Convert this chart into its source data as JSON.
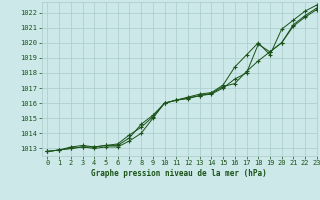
{
  "title": "Graphe pression niveau de la mer (hPa)",
  "xlim": [
    -0.5,
    23
  ],
  "ylim": [
    1012.5,
    1022.7
  ],
  "yticks": [
    1013,
    1014,
    1015,
    1016,
    1017,
    1018,
    1019,
    1020,
    1021,
    1022
  ],
  "xticks": [
    0,
    1,
    2,
    3,
    4,
    5,
    6,
    7,
    8,
    9,
    10,
    11,
    12,
    13,
    14,
    15,
    16,
    17,
    18,
    19,
    20,
    21,
    22,
    23
  ],
  "bg_color": "#cce8e8",
  "grid_color": "#aacccc",
  "line_color": "#1a5218",
  "series1_y": [
    1012.8,
    1012.9,
    1013.1,
    1013.2,
    1013.1,
    1013.2,
    1013.3,
    1013.9,
    1014.4,
    1015.1,
    1016.0,
    1016.2,
    1016.3,
    1016.5,
    1016.6,
    1017.0,
    1017.6,
    1018.0,
    1019.9,
    1019.4,
    1020.0,
    1021.1,
    1021.7,
    1022.2
  ],
  "series2_y": [
    1012.8,
    1012.9,
    1013.0,
    1013.1,
    1013.0,
    1013.1,
    1013.1,
    1013.5,
    1014.0,
    1015.0,
    1016.0,
    1016.2,
    1016.35,
    1016.5,
    1016.65,
    1017.1,
    1017.3,
    1018.1,
    1018.8,
    1019.4,
    1020.0,
    1021.2,
    1021.8,
    1022.3
  ],
  "series3_y": [
    1012.8,
    1012.9,
    1013.0,
    1013.1,
    1013.1,
    1013.2,
    1013.2,
    1013.7,
    1014.6,
    1015.2,
    1016.0,
    1016.2,
    1016.4,
    1016.6,
    1016.7,
    1017.2,
    1018.4,
    1019.2,
    1020.0,
    1019.2,
    1020.9,
    1021.5,
    1022.1,
    1022.5
  ]
}
